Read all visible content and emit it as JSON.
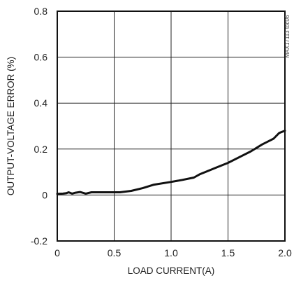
{
  "chart_data": {
    "type": "line",
    "title": "",
    "xlabel": "LOAD CURRENT(A)",
    "ylabel": "OUTPUT-VOLTAGE ERROR (%)",
    "side_label": "MAX17113 toc06",
    "xlim": [
      0,
      2.0
    ],
    "ylim": [
      -0.2,
      0.8
    ],
    "x_ticks": [
      0,
      0.5,
      1.0,
      1.5,
      2.0
    ],
    "x_tick_labels": [
      "0",
      "0.5",
      "1.0",
      "1.5",
      "2.0"
    ],
    "y_ticks": [
      -0.2,
      0,
      0.2,
      0.4,
      0.6,
      0.8
    ],
    "y_tick_labels": [
      "-0.2",
      "0",
      "0.2",
      "0.4",
      "0.6",
      "0.8"
    ],
    "grid": true,
    "line_color": "#111111",
    "series": [
      {
        "x": [
          0,
          0.05,
          0.08,
          0.1,
          0.13,
          0.16,
          0.2,
          0.25,
          0.3,
          0.4,
          0.5,
          0.55,
          0.65,
          0.75,
          0.85,
          1.0,
          1.1,
          1.2,
          1.25,
          1.3,
          1.4,
          1.5,
          1.6,
          1.7,
          1.8,
          1.9,
          1.95,
          2.0
        ],
        "y": [
          0.005,
          0.006,
          0.008,
          0.012,
          0.006,
          0.01,
          0.013,
          0.006,
          0.012,
          0.012,
          0.012,
          0.012,
          0.018,
          0.03,
          0.045,
          0.057,
          0.066,
          0.076,
          0.09,
          0.1,
          0.12,
          0.14,
          0.165,
          0.19,
          0.22,
          0.245,
          0.27,
          0.28
        ]
      }
    ]
  }
}
